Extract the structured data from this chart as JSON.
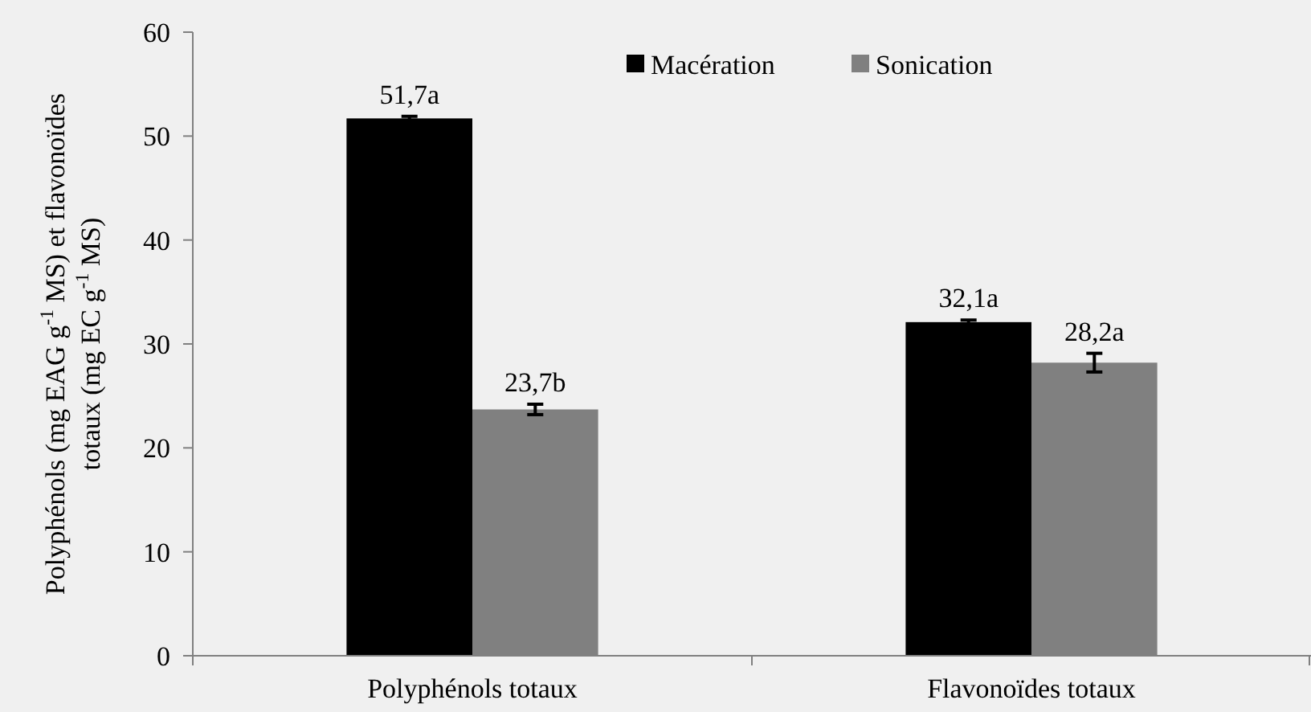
{
  "chart_data": {
    "type": "bar",
    "ylabel": "Polyphénols (mg EAG g$^{-1}$ MS) et flavonoïdes totaux (mg EC g$^{-1}$ MS)",
    "categories": [
      "Polyphénols totaux",
      "Flavonoïdes totaux"
    ],
    "series": [
      {
        "name": "Macération",
        "color": "#000000",
        "values": [
          51.7,
          32.1
        ],
        "errors": [
          0.2,
          0.2
        ],
        "value_labels": [
          "51,7a",
          "32,1a"
        ]
      },
      {
        "name": "Sonication",
        "color": "#808080",
        "values": [
          23.7,
          28.2
        ],
        "errors": [
          0.5,
          0.9
        ],
        "value_labels": [
          "23,7b",
          "28,2a"
        ]
      }
    ],
    "ylim": [
      0,
      60
    ],
    "yticks": [
      0,
      10,
      20,
      30,
      40,
      50,
      60
    ],
    "grid": false,
    "legend": "top"
  }
}
